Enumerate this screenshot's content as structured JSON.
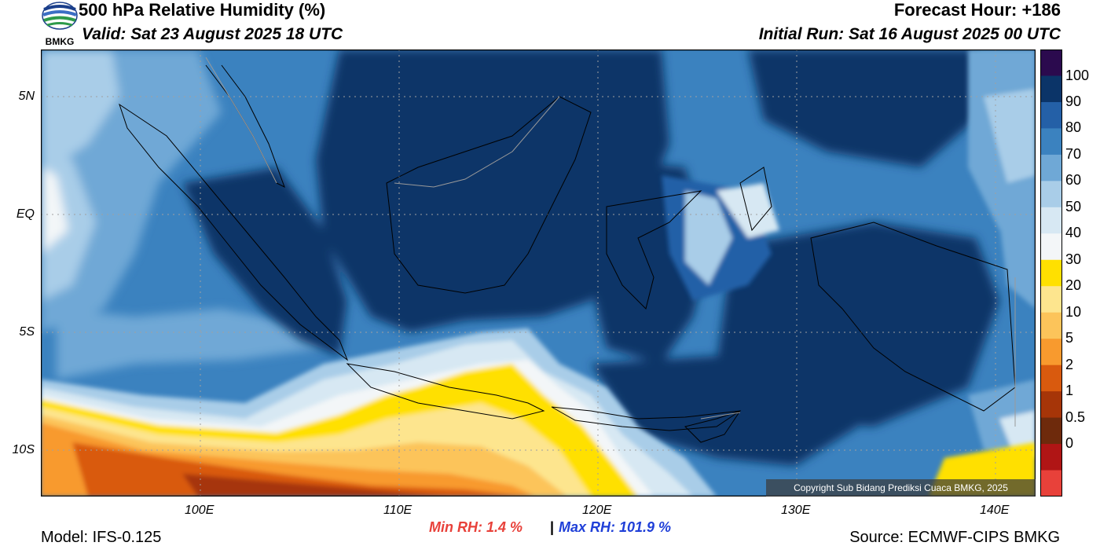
{
  "header": {
    "title": "500 hPa Relative Humidity (%)",
    "valid": "Valid: Sat 23 August 2025 18 UTC",
    "forecast_hour": "Forecast Hour: +186",
    "initial_run": "Initial Run: Sat 16 August 2025 00 UTC",
    "logo_text": "BMKG"
  },
  "axes": {
    "lat_labels": [
      "5N",
      "EQ",
      "5S",
      "10S"
    ],
    "lon_labels": [
      "100E",
      "110E",
      "120E",
      "130E",
      "140E"
    ]
  },
  "colorbar": {
    "labels": [
      "100",
      "90",
      "80",
      "70",
      "60",
      "50",
      "40",
      "30",
      "20",
      "10",
      "5",
      "2",
      "1",
      "0.5",
      "0"
    ],
    "colors": [
      "#2b0a4e",
      "#0b3468",
      "#2460a7",
      "#3b82bf",
      "#6fa8d6",
      "#a9cde8",
      "#d7e8f3",
      "#f3f6f8",
      "#ffe000",
      "#fde58e",
      "#fcc45a",
      "#f89a2e",
      "#d95a0e",
      "#a63508",
      "#6e2a0c",
      "#b01515",
      "#e8413a"
    ]
  },
  "stats": {
    "min": "Min RH:   1.4 %",
    "sep": "|",
    "max": "Max RH: 101.9 %",
    "min_color": "#e8413a",
    "max_color": "#1f3fd8"
  },
  "footer": {
    "model": "Model: IFS-0.125",
    "source": "Source: ECMWF-CIPS BMKG",
    "copyright": "Copyright Sub Bidang Prediksi Cuaca BMKG, 2025"
  }
}
